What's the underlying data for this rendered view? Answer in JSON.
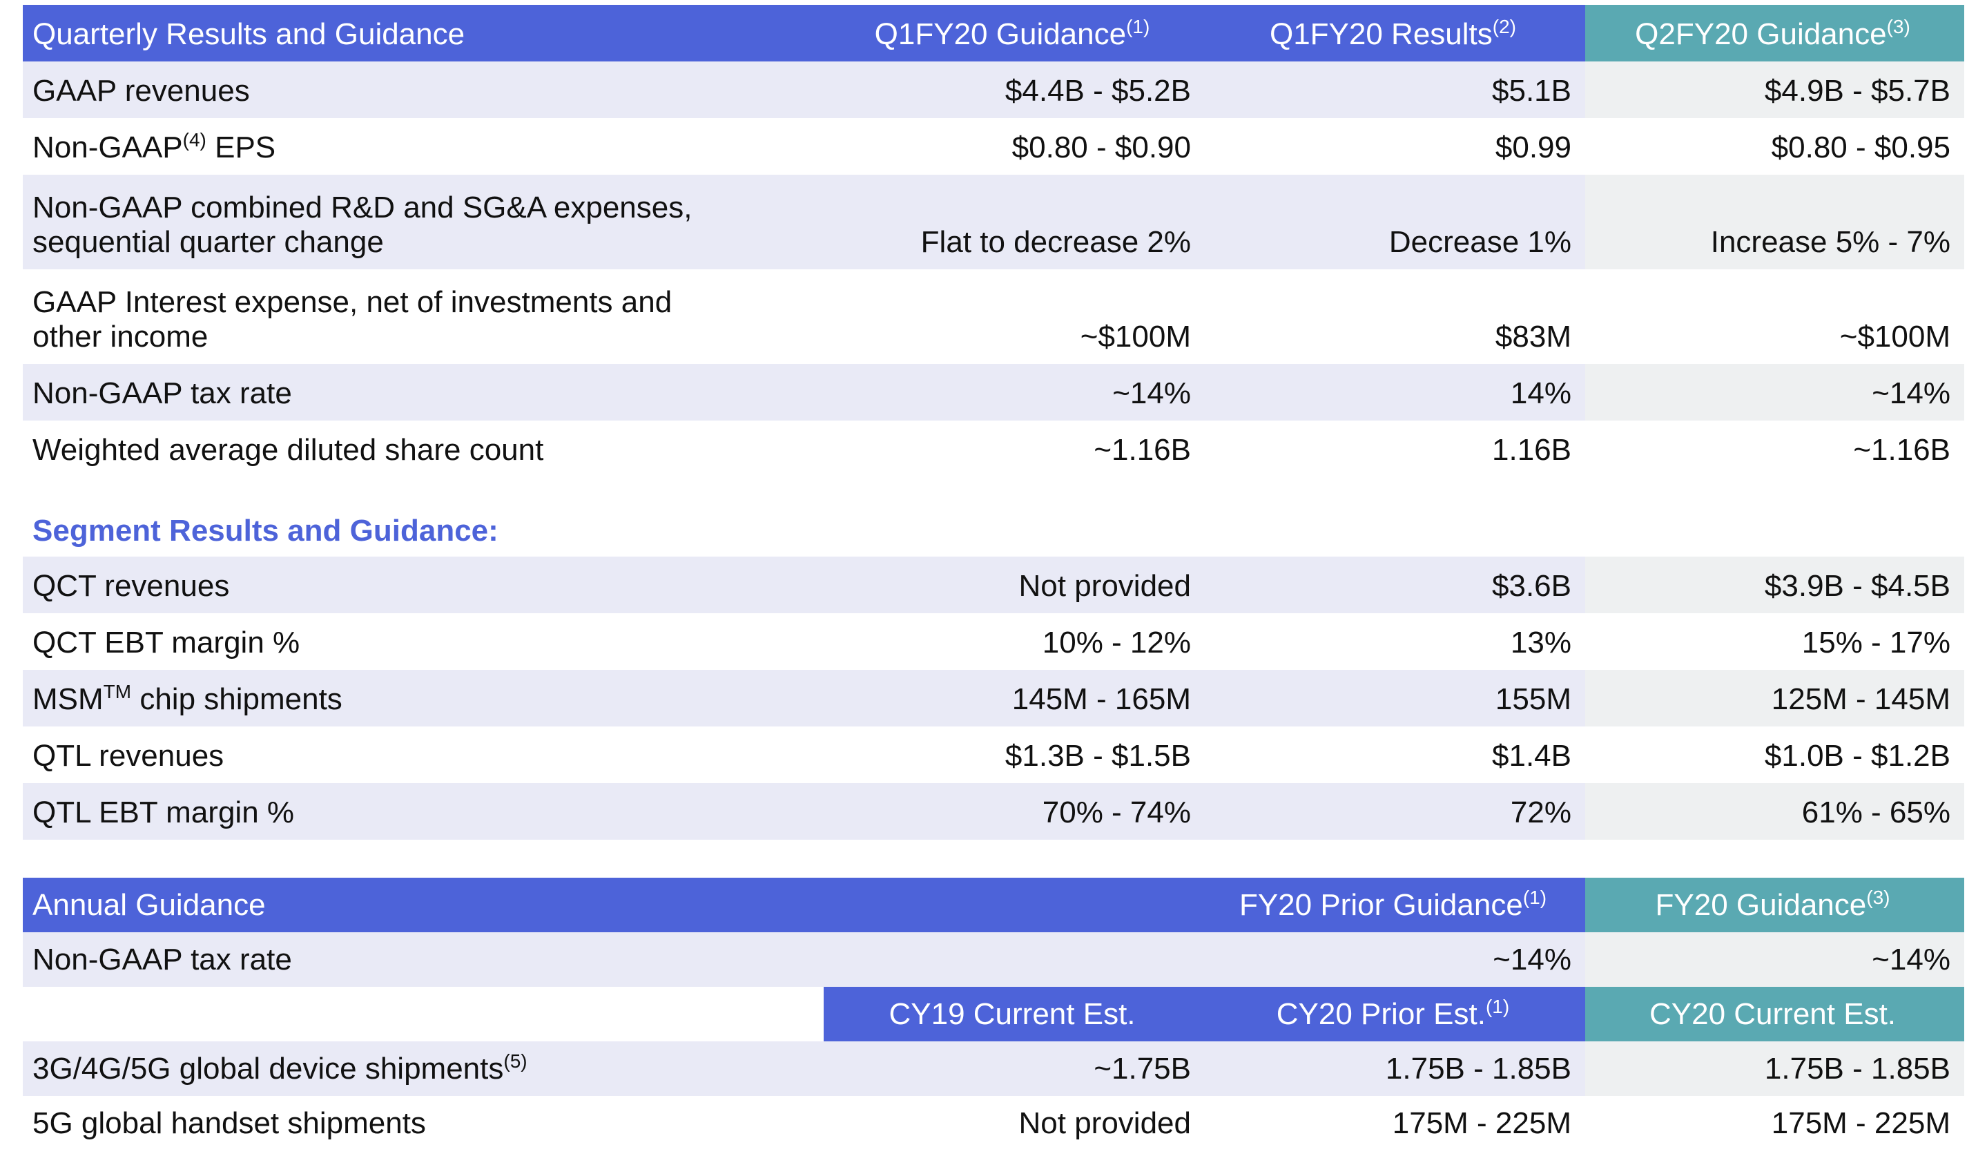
{
  "quarterly": {
    "header": [
      {
        "text": "Quarterly Results and Guidance"
      },
      {
        "text": "Q1FY20 Guidance",
        "note": "(1)"
      },
      {
        "text": "Q1FY20 Results",
        "note": "(2)"
      },
      {
        "text": "Q2FY20 Guidance",
        "note": "(3)"
      }
    ],
    "rows": [
      {
        "lines": [
          "GAAP revenues"
        ],
        "values": [
          "$4.4B - $5.2B",
          "$5.1B",
          "$4.9B - $5.7B"
        ]
      },
      {
        "lines": [
          "Non-GAAP"
        ],
        "note": "(4)",
        "after": "EPS",
        "values": [
          "$0.80 - $0.90",
          "$0.99",
          "$0.80 - $0.95"
        ]
      },
      {
        "lines": [
          "Non-GAAP combined R&D and SG&A expenses,",
          "sequential quarter change"
        ],
        "values": [
          "Flat to decrease 2%",
          "Decrease 1%",
          "Increase 5% - 7%"
        ]
      },
      {
        "lines": [
          "GAAP Interest expense, net of investments and",
          "other income"
        ],
        "values": [
          "~$100M",
          "$83M",
          "~$100M"
        ]
      },
      {
        "lines": [
          "Non-GAAP tax rate"
        ],
        "values": [
          "~14%",
          "14%",
          "~14%"
        ]
      },
      {
        "lines": [
          "Weighted average diluted share count"
        ],
        "values": [
          "~1.16B",
          "1.16B",
          "~1.16B"
        ]
      }
    ]
  },
  "segment": {
    "title": "Segment Results and Guidance:",
    "rows": [
      {
        "lines": [
          "QCT revenues"
        ],
        "values": [
          "Not provided",
          "$3.6B",
          "$3.9B - $4.5B"
        ]
      },
      {
        "lines": [
          "QCT EBT margin %"
        ],
        "values": [
          "10% - 12%",
          "13%",
          "15% - 17%"
        ]
      },
      {
        "lines": [
          "MSM"
        ],
        "note": "TM",
        "after": "chip shipments",
        "values": [
          "145M - 165M",
          "155M",
          "125M - 145M"
        ]
      },
      {
        "lines": [
          "QTL revenues"
        ],
        "values": [
          "$1.3B - $1.5B",
          "$1.4B",
          "$1.0B - $1.2B"
        ]
      },
      {
        "lines": [
          "QTL EBT margin %"
        ],
        "values": [
          "70% - 74%",
          "72%",
          "61% - 65%"
        ]
      }
    ]
  },
  "annual": {
    "title": "Annual Guidance",
    "header": [
      {
        "text": "FY20 Prior Guidance",
        "note": "(1)"
      },
      {
        "text": "FY20 Guidance",
        "note": "(3)"
      }
    ],
    "tax": {
      "lines": [
        "Non-GAAP tax rate"
      ],
      "values": [
        "~14%",
        "~14%"
      ]
    },
    "subheader": [
      {
        "text": "CY19 Current Est."
      },
      {
        "text": "CY20 Prior Est.",
        "note": "(1)"
      },
      {
        "text": "CY20 Current Est."
      }
    ],
    "rows": [
      {
        "lines": [
          "3G/4G/5G global device shipments"
        ],
        "note": "(5)",
        "values": [
          "~1.75B",
          "1.75B - 1.85B",
          "1.75B - 1.85B"
        ]
      },
      {
        "lines": [
          "5G global handset shipments"
        ],
        "values": [
          "Not provided",
          "175M - 225M",
          "175M - 225M"
        ]
      }
    ]
  }
}
